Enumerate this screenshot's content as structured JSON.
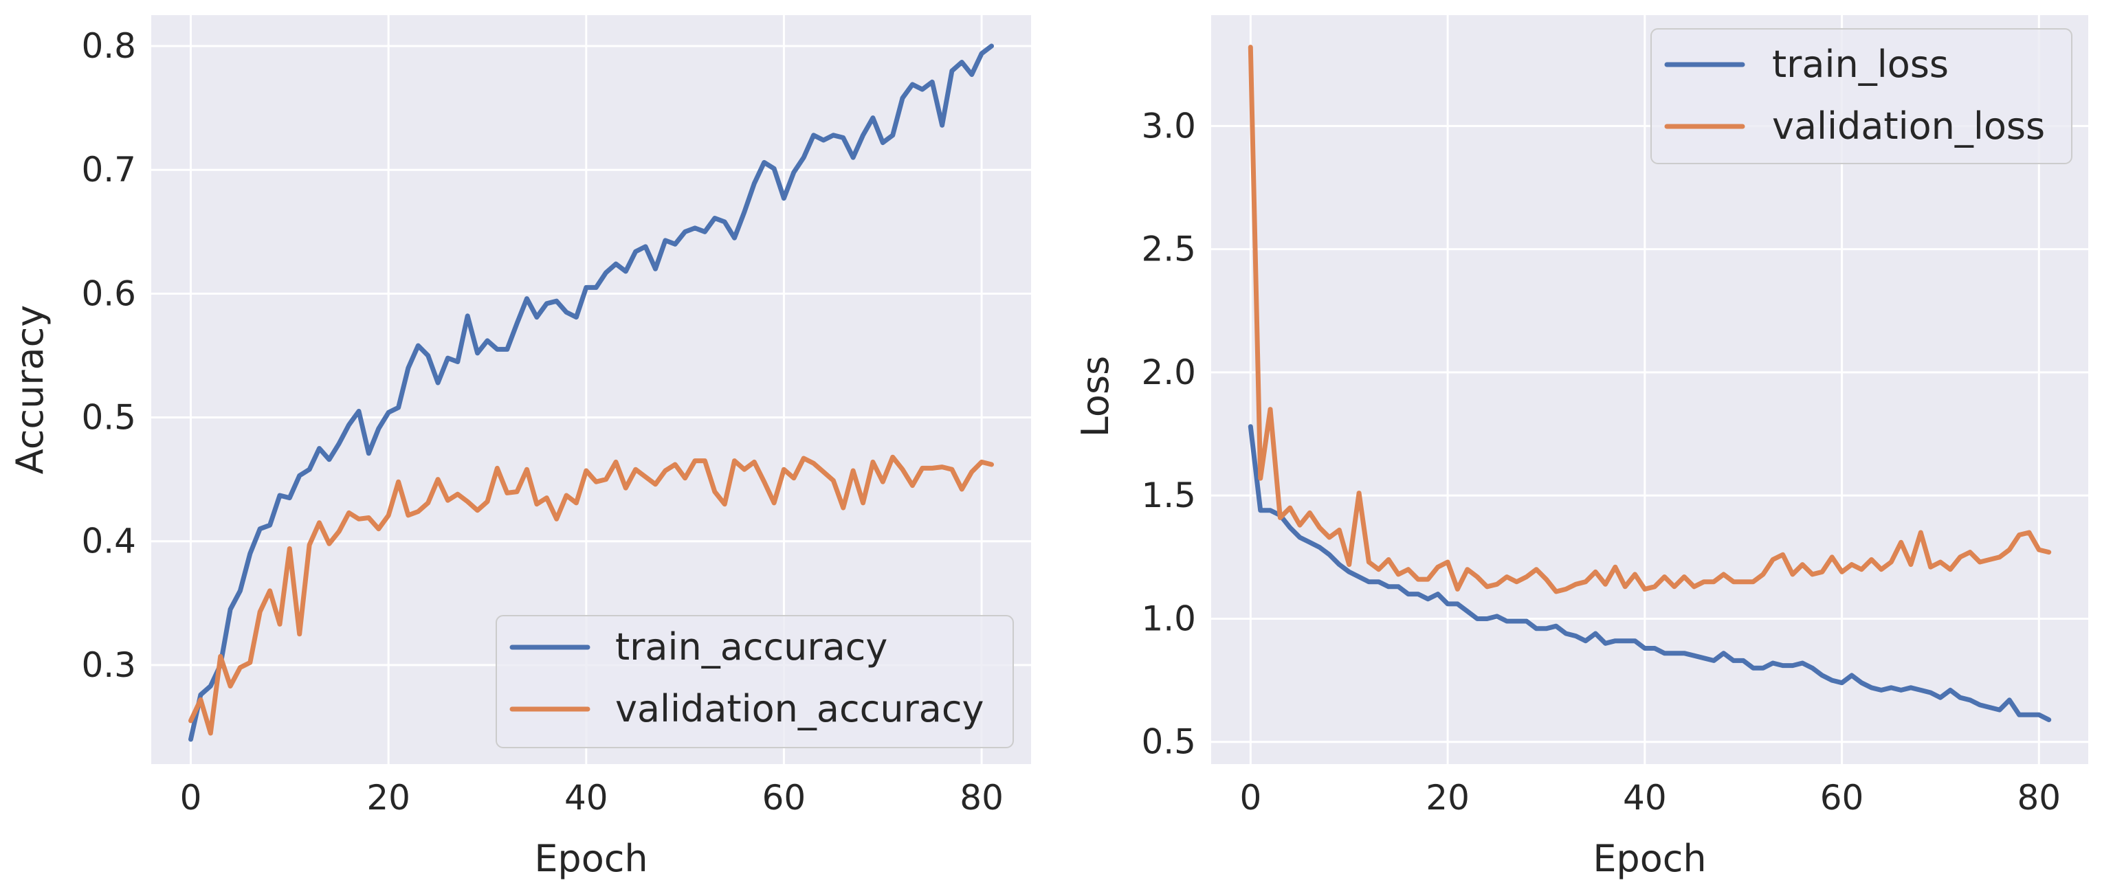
{
  "colors": {
    "panel_bg": "#eaeaf2",
    "grid": "#ffffff",
    "train": "#4c72b0",
    "validation": "#dd8452",
    "legend_bg": "#eaeaf2",
    "legend_edge": "#cccccc"
  },
  "chart_data": [
    {
      "type": "line",
      "title": "",
      "xlabel": "Epoch",
      "ylabel": "Accuracy",
      "xlim": [
        -4,
        85
      ],
      "ylim": [
        0.22,
        0.825
      ],
      "xticks": [
        0,
        20,
        40,
        60,
        80
      ],
      "xtick_labels": [
        "0",
        "20",
        "40",
        "60",
        "80"
      ],
      "yticks": [
        0.3,
        0.4,
        0.5,
        0.6,
        0.7,
        0.8
      ],
      "ytick_labels": [
        "0.3",
        "0.4",
        "0.5",
        "0.6",
        "0.7",
        "0.8"
      ],
      "grid": true,
      "legend_position": "lower-right",
      "series": [
        {
          "name": "train_accuracy",
          "color_key": "train",
          "values": [
            0.24,
            0.276,
            0.283,
            0.3,
            0.345,
            0.36,
            0.39,
            0.41,
            0.413,
            0.437,
            0.435,
            0.453,
            0.458,
            0.475,
            0.466,
            0.479,
            0.494,
            0.505,
            0.471,
            0.491,
            0.504,
            0.508,
            0.54,
            0.558,
            0.55,
            0.528,
            0.548,
            0.545,
            0.582,
            0.552,
            0.562,
            0.555,
            0.555,
            0.576,
            0.596,
            0.581,
            0.592,
            0.594,
            0.585,
            0.581,
            0.605,
            0.605,
            0.617,
            0.624,
            0.618,
            0.634,
            0.638,
            0.62,
            0.643,
            0.64,
            0.65,
            0.653,
            0.65,
            0.661,
            0.658,
            0.645,
            0.666,
            0.689,
            0.706,
            0.701,
            0.677,
            0.698,
            0.71,
            0.728,
            0.724,
            0.728,
            0.726,
            0.71,
            0.728,
            0.742,
            0.722,
            0.728,
            0.758,
            0.769,
            0.765,
            0.771,
            0.736,
            0.78,
            0.787,
            0.777,
            0.794,
            0.8
          ]
        },
        {
          "name": "validation_accuracy",
          "color_key": "validation",
          "values": [
            0.255,
            0.272,
            0.245,
            0.307,
            0.283,
            0.298,
            0.302,
            0.343,
            0.36,
            0.333,
            0.394,
            0.325,
            0.397,
            0.415,
            0.398,
            0.408,
            0.423,
            0.418,
            0.419,
            0.41,
            0.421,
            0.448,
            0.421,
            0.424,
            0.431,
            0.45,
            0.433,
            0.438,
            0.432,
            0.425,
            0.432,
            0.459,
            0.439,
            0.44,
            0.458,
            0.43,
            0.435,
            0.418,
            0.437,
            0.431,
            0.457,
            0.448,
            0.45,
            0.464,
            0.443,
            0.458,
            0.452,
            0.446,
            0.457,
            0.462,
            0.451,
            0.465,
            0.465,
            0.44,
            0.43,
            0.465,
            0.458,
            0.464,
            0.448,
            0.431,
            0.458,
            0.451,
            0.467,
            0.463,
            0.456,
            0.449,
            0.427,
            0.457,
            0.431,
            0.464,
            0.448,
            0.468,
            0.458,
            0.445,
            0.459,
            0.459,
            0.46,
            0.458,
            0.442,
            0.456,
            0.464,
            0.462
          ]
        }
      ]
    },
    {
      "type": "line",
      "title": "",
      "xlabel": "Epoch",
      "ylabel": "Loss",
      "xlim": [
        -4,
        85
      ],
      "ylim": [
        0.41,
        3.45
      ],
      "xticks": [
        0,
        20,
        40,
        60,
        80
      ],
      "xtick_labels": [
        "0",
        "20",
        "40",
        "60",
        "80"
      ],
      "yticks": [
        0.5,
        1.0,
        1.5,
        2.0,
        2.5,
        3.0
      ],
      "ytick_labels": [
        "0.5",
        "1.0",
        "1.5",
        "2.0",
        "2.5",
        "3.0"
      ],
      "grid": true,
      "legend_position": "upper-right",
      "series": [
        {
          "name": "train_loss",
          "color_key": "train",
          "values": [
            1.78,
            1.44,
            1.44,
            1.42,
            1.37,
            1.33,
            1.31,
            1.29,
            1.26,
            1.22,
            1.19,
            1.17,
            1.15,
            1.15,
            1.13,
            1.13,
            1.1,
            1.1,
            1.08,
            1.1,
            1.06,
            1.06,
            1.03,
            1.0,
            1.0,
            1.01,
            0.99,
            0.99,
            0.99,
            0.96,
            0.96,
            0.97,
            0.94,
            0.93,
            0.91,
            0.94,
            0.9,
            0.91,
            0.91,
            0.91,
            0.88,
            0.88,
            0.86,
            0.86,
            0.86,
            0.85,
            0.84,
            0.83,
            0.86,
            0.83,
            0.83,
            0.8,
            0.8,
            0.82,
            0.81,
            0.81,
            0.82,
            0.8,
            0.77,
            0.75,
            0.74,
            0.77,
            0.74,
            0.72,
            0.71,
            0.72,
            0.71,
            0.72,
            0.71,
            0.7,
            0.68,
            0.71,
            0.68,
            0.67,
            0.65,
            0.64,
            0.63,
            0.67,
            0.61,
            0.61,
            0.61,
            0.59
          ]
        },
        {
          "name": "validation_loss",
          "color_key": "validation",
          "values": [
            3.32,
            1.57,
            1.85,
            1.41,
            1.45,
            1.38,
            1.43,
            1.37,
            1.33,
            1.36,
            1.22,
            1.51,
            1.23,
            1.2,
            1.24,
            1.18,
            1.2,
            1.16,
            1.16,
            1.21,
            1.23,
            1.12,
            1.2,
            1.17,
            1.13,
            1.14,
            1.17,
            1.15,
            1.17,
            1.2,
            1.16,
            1.11,
            1.12,
            1.14,
            1.15,
            1.19,
            1.14,
            1.21,
            1.13,
            1.18,
            1.12,
            1.13,
            1.17,
            1.13,
            1.17,
            1.13,
            1.15,
            1.15,
            1.18,
            1.15,
            1.15,
            1.15,
            1.18,
            1.24,
            1.26,
            1.18,
            1.22,
            1.18,
            1.19,
            1.25,
            1.19,
            1.22,
            1.2,
            1.24,
            1.2,
            1.23,
            1.31,
            1.22,
            1.35,
            1.21,
            1.23,
            1.2,
            1.25,
            1.27,
            1.23,
            1.24,
            1.25,
            1.28,
            1.34,
            1.35,
            1.28,
            1.27
          ]
        }
      ]
    }
  ]
}
